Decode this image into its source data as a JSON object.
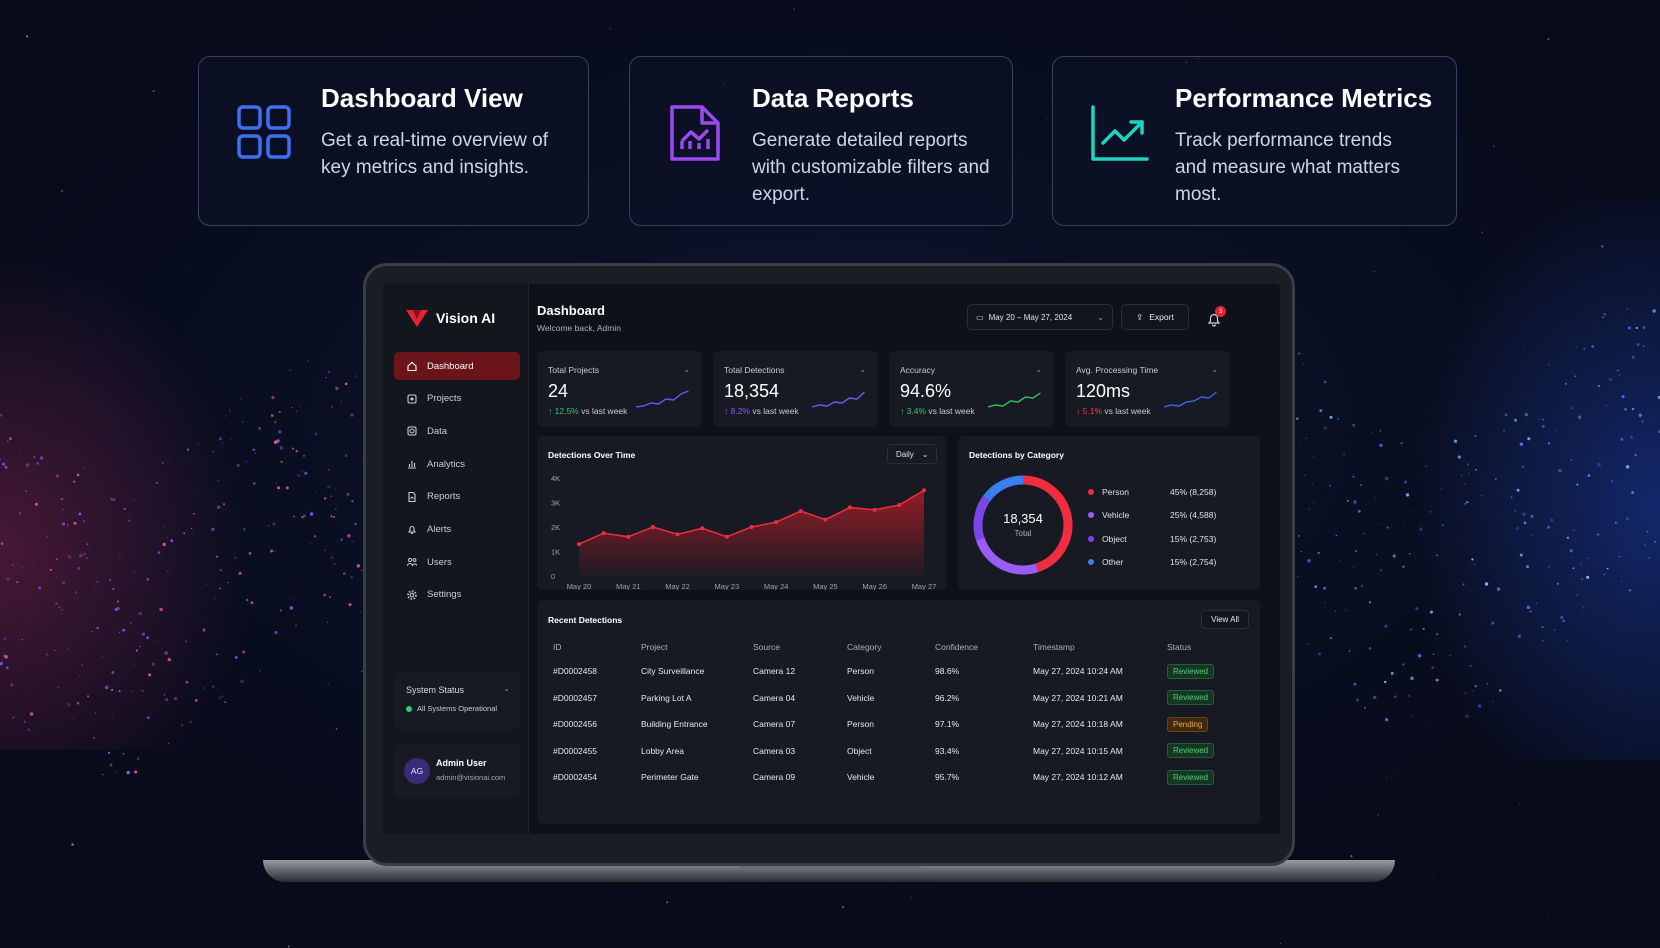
{
  "features": [
    {
      "title": "Dashboard View",
      "desc": "Get a real-time overview of key metrics and insights.",
      "icon": "grid-icon"
    },
    {
      "title": "Data Reports",
      "desc": "Generate detailed reports with customizable filters and export.",
      "icon": "report-icon"
    },
    {
      "title": "Performance Metrics",
      "desc": "Track performance trends and measure what matters most.",
      "icon": "trend-icon"
    }
  ],
  "app": {
    "name": "Vision AI"
  },
  "sidebar": {
    "items": [
      {
        "label": "Dashboard",
        "icon": "home-icon",
        "active": true
      },
      {
        "label": "Projects",
        "icon": "folder-icon"
      },
      {
        "label": "Data",
        "icon": "database-icon"
      },
      {
        "label": "Analytics",
        "icon": "bar-chart-icon"
      },
      {
        "label": "Reports",
        "icon": "file-icon"
      },
      {
        "label": "Alerts",
        "icon": "bell-icon"
      },
      {
        "label": "Users",
        "icon": "users-icon"
      },
      {
        "label": "Settings",
        "icon": "gear-icon"
      }
    ],
    "status_title": "System Status",
    "status_text": "All Systems Operational",
    "user": {
      "initials": "AG",
      "name": "Admin User",
      "email": "admin@visionai.com"
    }
  },
  "header": {
    "title": "Dashboard",
    "subtitle": "Welcome back, Admin",
    "date_range": "May 20 – May 27, 2024",
    "export_label": "Export",
    "notifications": "3"
  },
  "kpis": [
    {
      "label": "Total Projects",
      "value": "24",
      "arrow": "↑",
      "delta": "12.5%",
      "suffix": "vs last week",
      "color": "#36c46a",
      "spark": "#5b5cf0"
    },
    {
      "label": "Total Detections",
      "value": "18,354",
      "arrow": "↑",
      "delta": "8.2%",
      "suffix": "vs last week",
      "color": "#8c5cf6",
      "spark": "#6b5cf0"
    },
    {
      "label": "Accuracy",
      "value": "94.6%",
      "arrow": "↑",
      "delta": "3.4%",
      "suffix": "vs last week",
      "color": "#36c46a",
      "spark": "#2fbf5c"
    },
    {
      "label": "Avg. Processing Time",
      "value": "120ms",
      "arrow": "↓",
      "delta": "5.1%",
      "suffix": "vs last week",
      "color": "#ef3b3b",
      "spark": "#3f63e6"
    }
  ],
  "line_chart": {
    "title": "Detections Over Time",
    "interval": "Daily",
    "yticks": [
      "4K",
      "3K",
      "2K",
      "1K",
      "0"
    ],
    "xticks": [
      "May 20",
      "May 21",
      "May 22",
      "May 23",
      "May 24",
      "May 25",
      "May 26",
      "May 27"
    ]
  },
  "chart_data": [
    {
      "type": "area",
      "title": "Detections Over Time",
      "x": [
        "May 20",
        "",
        "May 21",
        "",
        "May 22",
        "",
        "May 23",
        "",
        "May 24",
        "",
        "May 25",
        "",
        "May 26",
        "",
        "May 27"
      ],
      "values": [
        1300,
        1750,
        1600,
        2000,
        1700,
        1950,
        1600,
        2000,
        2200,
        2650,
        2300,
        2800,
        2700,
        2900,
        3500
      ],
      "ylim": [
        0,
        4000
      ]
    },
    {
      "type": "pie",
      "title": "Detections by Category",
      "categories": [
        "Person",
        "Vehicle",
        "Object",
        "Other"
      ],
      "values": [
        8258,
        4588,
        2753,
        2754
      ]
    }
  ],
  "donut": {
    "title": "Detections by Category",
    "center_value": "18,354",
    "center_label": "Total",
    "legend": [
      {
        "label": "Person",
        "value": "45% (8,258)",
        "color": "#ef2d3f"
      },
      {
        "label": "Vehicle",
        "value": "25% (4,588)",
        "color": "#9b5cf6"
      },
      {
        "label": "Object",
        "value": "15% (2,753)",
        "color": "#7b45e8"
      },
      {
        "label": "Other",
        "value": "15% (2,754)",
        "color": "#3a7ff2"
      }
    ]
  },
  "table": {
    "title": "Recent Detections",
    "view_all": "View All",
    "columns": [
      "ID",
      "Project",
      "Source",
      "Category",
      "Confidence",
      "Timestamp",
      "Status"
    ],
    "rows": [
      [
        "#D0002458",
        "City Surveillance",
        "Camera 12",
        "Person",
        "98.6%",
        "May 27, 2024 10:24 AM",
        "Reviewed"
      ],
      [
        "#D0002457",
        "Parking Lot A",
        "Camera 04",
        "Vehicle",
        "96.2%",
        "May 27, 2024 10:21 AM",
        "Reviewed"
      ],
      [
        "#D0002456",
        "Building Entrance",
        "Camera 07",
        "Person",
        "97.1%",
        "May 27, 2024 10:18 AM",
        "Pending"
      ],
      [
        "#D0002455",
        "Lobby Area",
        "Camera 03",
        "Object",
        "93.4%",
        "May 27, 2024 10:15 AM",
        "Reviewed"
      ],
      [
        "#D0002454",
        "Perimeter Gate",
        "Camera 09",
        "Vehicle",
        "95.7%",
        "May 27, 2024 10:12 AM",
        "Reviewed"
      ]
    ]
  }
}
